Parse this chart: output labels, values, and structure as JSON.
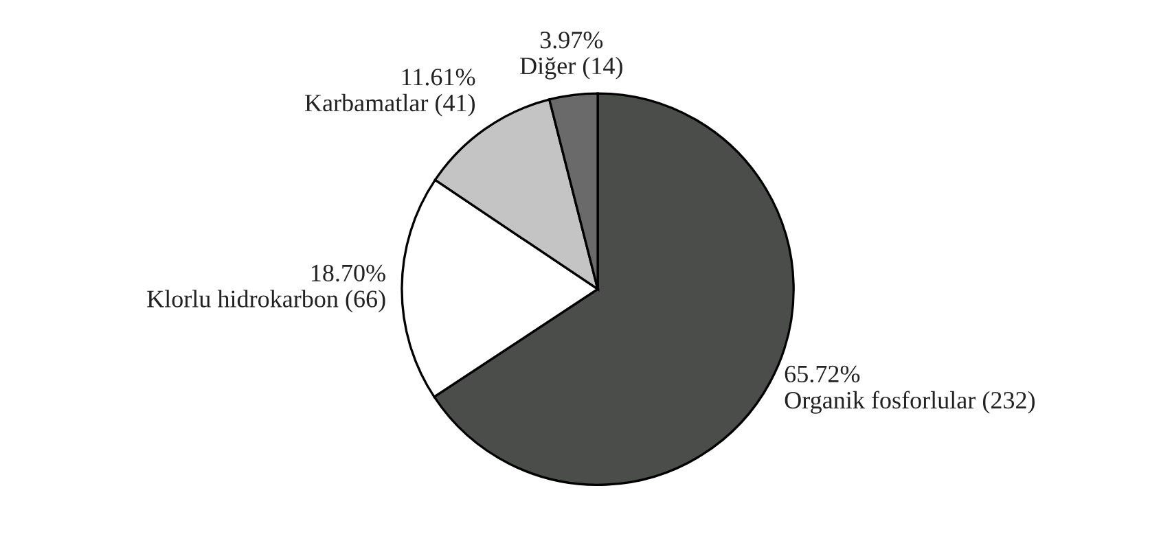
{
  "chart_data": {
    "type": "pie",
    "categories": [
      "Organik fosforlular (232)",
      "Klorlu hidrokarbon (66)",
      "Karbamatlar (41)",
      "Diğer (14)"
    ],
    "values": [
      65.72,
      18.7,
      11.61,
      3.97
    ],
    "value_labels": [
      "65.72%",
      "18.70%",
      "11.61%",
      "3.97%"
    ],
    "colors": [
      "#4a4d4a",
      "#ffffff",
      "#c4c4c4",
      "#6a6a6a"
    ],
    "legend": false
  }
}
